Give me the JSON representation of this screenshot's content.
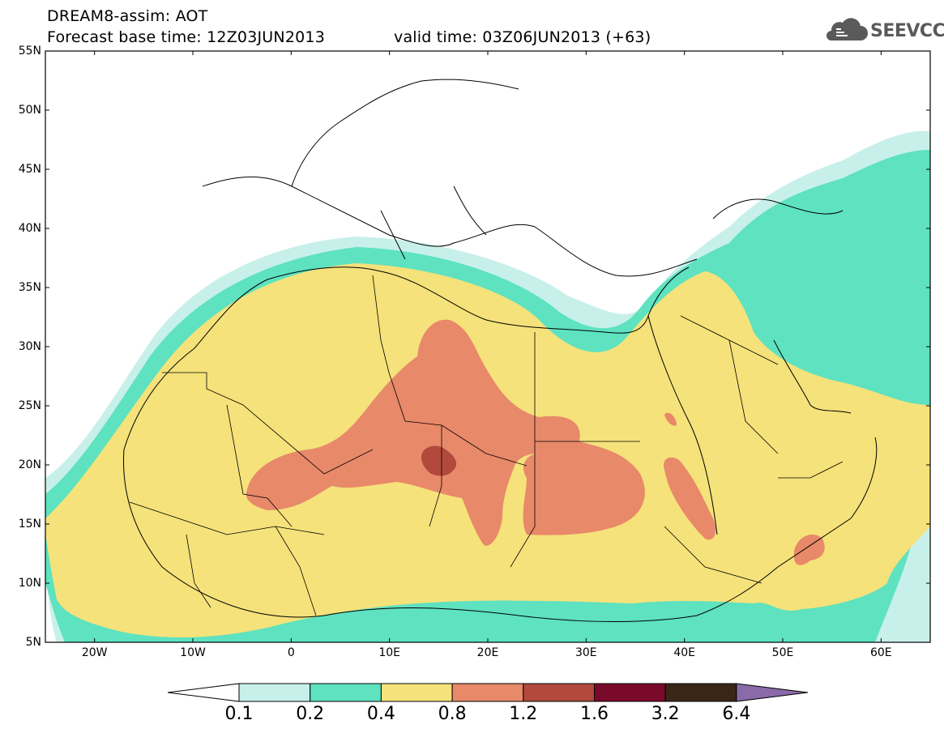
{
  "header": {
    "line1": "DREAM8-assim: AOT",
    "line2_base": "Forecast base time: 12Z03JUN2013",
    "line2_valid": "valid time: 03Z06JUN2013 (+63)"
  },
  "logo": {
    "text": "SEEVCCC",
    "icon": "cloud-icon"
  },
  "axes": {
    "lat_labels": [
      "55N",
      "50N",
      "45N",
      "40N",
      "35N",
      "30N",
      "25N",
      "20N",
      "15N",
      "10N",
      "5N"
    ],
    "lon_labels": [
      "20W",
      "10W",
      "0",
      "10E",
      "20E",
      "30E",
      "40E",
      "50E",
      "60E"
    ],
    "lon_range": [
      -25,
      65
    ],
    "lat_range": [
      5,
      55
    ]
  },
  "colorbar": {
    "levels": [
      "0.1",
      "0.2",
      "0.4",
      "0.8",
      "1.2",
      "1.6",
      "3.2",
      "6.4"
    ],
    "colors": [
      "#c8f0ea",
      "#5ee2c0",
      "#f5e27a",
      "#e8896a",
      "#b14a3c",
      "#7a0a2a",
      "#3a2616",
      "#8a6aa8"
    ]
  },
  "map_colors": {
    "ocean": "#ffffff",
    "land_outline": "#000000"
  }
}
